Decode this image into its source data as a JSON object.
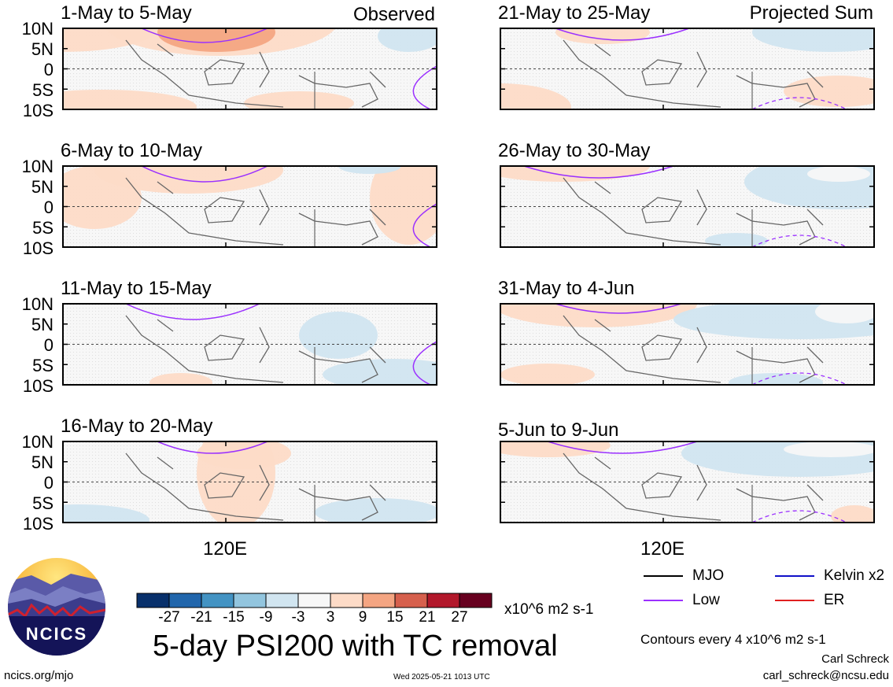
{
  "panels": [
    {
      "title": "1-May to 5-May",
      "label": "Observed"
    },
    {
      "title": "21-May to 25-May",
      "label": "Projected Sum"
    },
    {
      "title": "6-May to 10-May",
      "label": ""
    },
    {
      "title": "26-May to 30-May",
      "label": ""
    },
    {
      "title": "11-May to 15-May",
      "label": ""
    },
    {
      "title": "31-May to 4-Jun",
      "label": ""
    },
    {
      "title": "16-May to 20-May",
      "label": ""
    },
    {
      "title": "5-Jun to 9-Jun",
      "label": ""
    }
  ],
  "lat_ticks": [
    "10N",
    "5N",
    "0",
    "5S",
    "10S"
  ],
  "x_tick": "120E",
  "colorbar": {
    "colors": [
      "#08306b",
      "#2166ac",
      "#4393c3",
      "#92c5de",
      "#d1e5f0",
      "#f7f7f7",
      "#fddbc7",
      "#f4a582",
      "#d6604d",
      "#b2182b",
      "#67001f"
    ],
    "labels": [
      "-27",
      "-21",
      "-15",
      "-9",
      "-3",
      "3",
      "9",
      "15",
      "21",
      "27"
    ],
    "units": "x10^6 m2 s-1"
  },
  "legend": [
    {
      "label": "MJO",
      "color": "#000000"
    },
    {
      "label": "Kelvin x2",
      "color": "#1010c8"
    },
    {
      "label": "Low",
      "color": "#9b30ff"
    },
    {
      "label": "ER",
      "color": "#e02020"
    }
  ],
  "contour_note": "Contours every 4 x10^6 m2 s-1",
  "main_title": "5-day PSI200 with TC removal",
  "logo_text": "NCICS",
  "url": "ncics.org/mjo",
  "timestamp": "Wed 2025-05-21 1013 UTC",
  "author": "Carl Schreck",
  "email": "carl_schreck@ncsu.edu",
  "chart_data": {
    "type": "heatmap",
    "variable": "5-day PSI200 with TC removal",
    "units": "x10^6 m2 s-1",
    "levels": [
      -27,
      -21,
      -15,
      -9,
      -3,
      3,
      9,
      15,
      21,
      27
    ],
    "lat_labels": [
      "10N",
      "5N",
      "0",
      "5S",
      "10S"
    ],
    "lon_labels": [
      "120E"
    ],
    "panels": [
      "1-May to 5-May",
      "6-May to 10-May",
      "11-May to 15-May",
      "16-May to 20-May",
      "21-May to 25-May",
      "26-May to 30-May",
      "31-May to 4-Jun",
      "5-Jun to 9-Jun"
    ],
    "contours": [
      "MJO",
      "Kelvin x2",
      "Low",
      "ER"
    ]
  }
}
